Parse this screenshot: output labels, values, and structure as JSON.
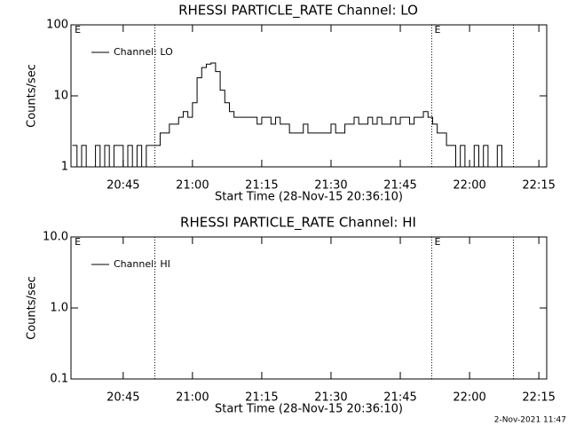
{
  "chart_data": [
    {
      "type": "line",
      "title": "RHESSI PARTICLE_RATE Channel: LO",
      "xlabel": "Start Time (28-Nov-15 20:36:10)",
      "ylabel": "Counts/sec",
      "log_y": true,
      "ylim": [
        1,
        100
      ],
      "yticks": [
        1,
        10,
        100
      ],
      "xlim": [
        1233.7,
        1336.7
      ],
      "xticks": [
        {
          "value": 1245,
          "label": "20:45"
        },
        {
          "value": 1260,
          "label": "21:00"
        },
        {
          "value": 1275,
          "label": "21:15"
        },
        {
          "value": 1290,
          "label": "21:30"
        },
        {
          "value": 1305,
          "label": "21:45"
        },
        {
          "value": 1320,
          "label": "22:00"
        },
        {
          "value": 1335,
          "label": "22:15"
        }
      ],
      "vlines": [
        1251.85,
        1311.8,
        1329.5
      ],
      "annotations": [
        {
          "text": "E",
          "x": 1234.5
        },
        {
          "text": "E",
          "x": 1312.4
        }
      ],
      "series": [
        {
          "name": "Channel: LO",
          "color": "#000000",
          "x": [
            1234,
            1235,
            1236,
            1237,
            1238,
            1239,
            1240,
            1241,
            1242,
            1243,
            1244,
            1245,
            1246,
            1247,
            1248,
            1249,
            1250,
            1251,
            1252,
            1253,
            1254,
            1255,
            1256,
            1257,
            1258,
            1259,
            1260,
            1261,
            1262,
            1263,
            1264,
            1265,
            1266,
            1267,
            1268,
            1269,
            1270,
            1271,
            1272,
            1273,
            1274,
            1275,
            1276,
            1277,
            1278,
            1279,
            1280,
            1281,
            1282,
            1283,
            1284,
            1285,
            1286,
            1287,
            1288,
            1289,
            1290,
            1291,
            1292,
            1293,
            1294,
            1295,
            1296,
            1297,
            1298,
            1299,
            1300,
            1301,
            1302,
            1303,
            1304,
            1305,
            1306,
            1307,
            1308,
            1309,
            1310,
            1311,
            1312,
            1313,
            1314,
            1315,
            1316,
            1317,
            1318,
            1319,
            1320,
            1321,
            1322,
            1323,
            1324,
            1325,
            1326,
            1327,
            1328
          ],
          "values": [
            2,
            1,
            2,
            1,
            1,
            2,
            1,
            2,
            1,
            2,
            2,
            1,
            2,
            1,
            2,
            1,
            2,
            2,
            2,
            3,
            3,
            4,
            4,
            5,
            6,
            5,
            8,
            18,
            25,
            28,
            29,
            22,
            12,
            8,
            6,
            5,
            5,
            5,
            5,
            5,
            4,
            5,
            5,
            4,
            5,
            4,
            4,
            3,
            3,
            3,
            4,
            3,
            3,
            3,
            3,
            3,
            4,
            3,
            3,
            4,
            4,
            5,
            4,
            4,
            5,
            4,
            5,
            4,
            4,
            5,
            4,
            5,
            5,
            4,
            5,
            5,
            6,
            5,
            4,
            3,
            3,
            2,
            2,
            1,
            2,
            1,
            1,
            2,
            1,
            2,
            1,
            1,
            2,
            1,
            1
          ]
        }
      ]
    },
    {
      "type": "line",
      "title": "RHESSI PARTICLE_RATE Channel: HI",
      "xlabel": "Start Time (28-Nov-15 20:36:10)",
      "ylabel": "Counts/sec",
      "log_y": true,
      "ylim": [
        0.1,
        10
      ],
      "yticks": [
        0.1,
        {
          "value": 1,
          "label": "1.0"
        },
        {
          "value": 10,
          "label": "10.0"
        }
      ],
      "xlim": [
        1233.7,
        1336.7
      ],
      "xticks": [
        {
          "value": 1245,
          "label": "20:45"
        },
        {
          "value": 1260,
          "label": "21:00"
        },
        {
          "value": 1275,
          "label": "21:15"
        },
        {
          "value": 1290,
          "label": "21:30"
        },
        {
          "value": 1305,
          "label": "21:45"
        },
        {
          "value": 1320,
          "label": "22:00"
        },
        {
          "value": 1335,
          "label": "22:15"
        }
      ],
      "vlines": [
        1251.85,
        1311.8,
        1329.5
      ],
      "annotations": [
        {
          "text": "E",
          "x": 1234.5
        },
        {
          "text": "E",
          "x": 1312.4
        }
      ],
      "series": [
        {
          "name": "Channel: HI",
          "color": "#000000",
          "x": [],
          "values": []
        }
      ]
    }
  ],
  "footer": "2-Nov-2021 11:47"
}
